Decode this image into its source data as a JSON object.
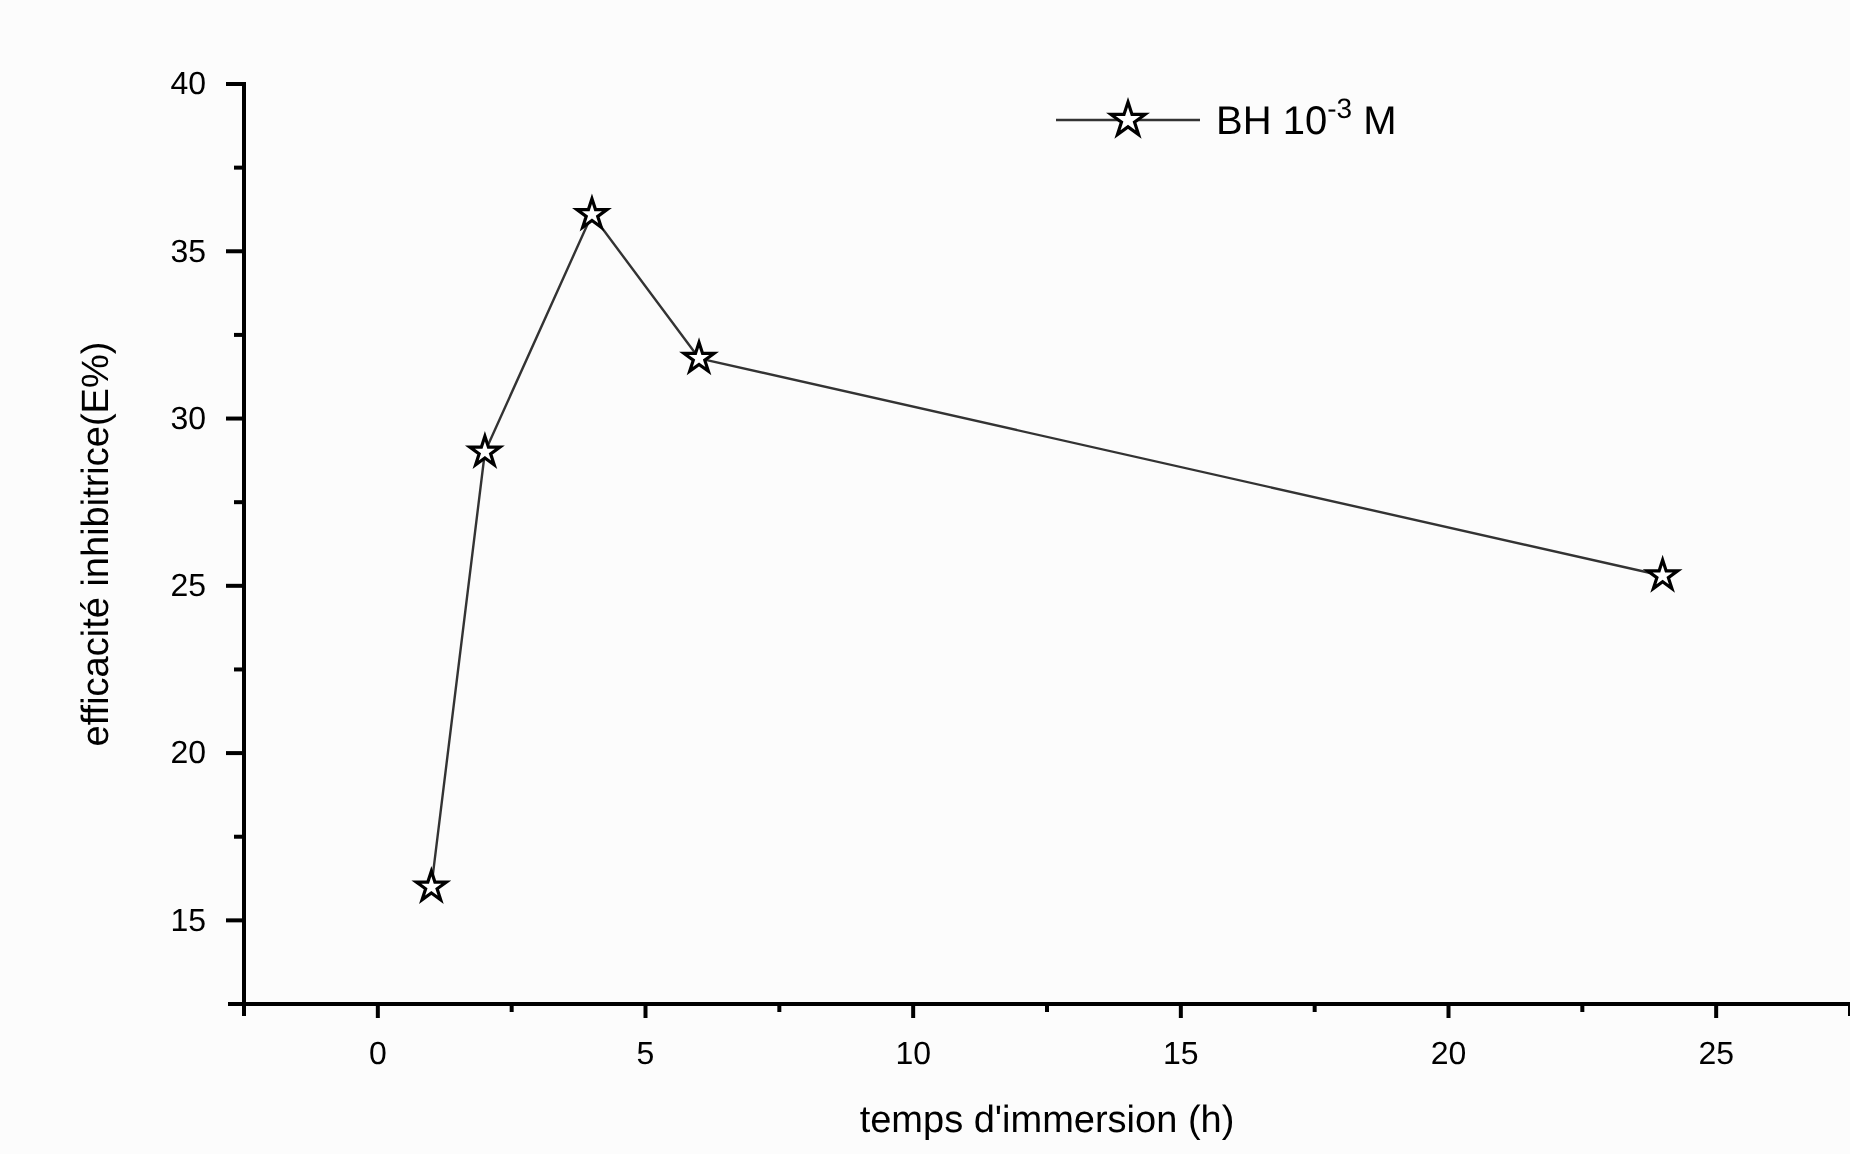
{
  "chart_data": {
    "type": "line",
    "xlabel": "temps d'immersion (h)",
    "ylabel": "efficacité inhibitrice(E%)",
    "x": [
      1,
      2,
      4,
      6,
      24
    ],
    "series": [
      {
        "name": "BH 10$^{-3}$ M",
        "color": "#333333",
        "values": [
          16.0,
          29.0,
          36.1,
          31.8,
          25.3
        ]
      }
    ],
    "xlim": [
      -2.5,
      27.5
    ],
    "ylim": [
      12.5,
      40
    ],
    "xticks": [
      {
        "value": -2.5,
        "label": null
      },
      0,
      {
        "value": 2.5,
        "label": null
      },
      5,
      {
        "value": 7.5,
        "label": null
      },
      10,
      {
        "value": 12.5,
        "label": null
      },
      15,
      {
        "value": 17.5,
        "label": null
      },
      20,
      {
        "value": 22.5,
        "label": null
      },
      25
    ],
    "yticks": [
      {
        "value": 12.5,
        "label": null
      },
      15,
      {
        "value": 17.5,
        "label": null
      },
      20,
      {
        "value": 22.5,
        "label": null
      },
      25,
      {
        "value": 27.5,
        "label": null
      },
      30,
      {
        "value": 32.5,
        "label": null
      },
      35,
      {
        "value": 37.5,
        "label": null
      },
      40
    ],
    "marker": "star",
    "line_style": "solid",
    "legend": "top right",
    "grid": false
  }
}
